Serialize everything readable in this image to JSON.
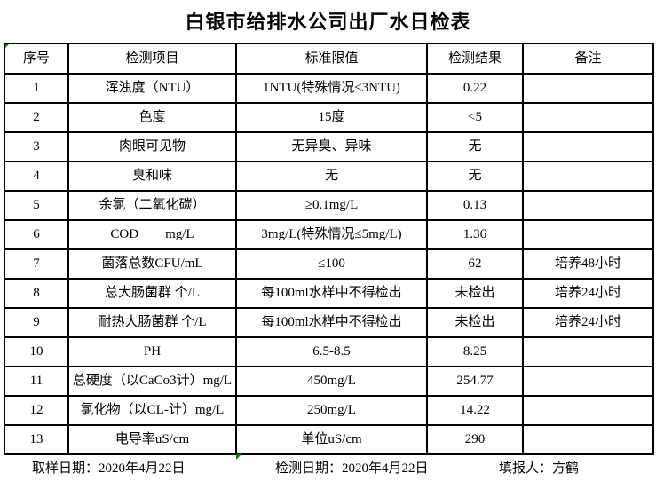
{
  "title": "白银市给排水公司出厂水日检表",
  "colors": {
    "border": "#000000",
    "background": "#ffffff",
    "text": "#000000",
    "marker_green": "#0a7d0a"
  },
  "table": {
    "headers": {
      "no": "序号",
      "item": "检测项目",
      "limit": "标准限值",
      "result": "检测结果",
      "note": "备注"
    },
    "rows": [
      {
        "no": "1",
        "item": "浑浊度（NTU）",
        "limit": "1NTU(特殊情况≤3NTU)",
        "result": "0.22",
        "note": ""
      },
      {
        "no": "2",
        "item": "色度",
        "limit": "15度",
        "result": "<5",
        "note": ""
      },
      {
        "no": "3",
        "item": "肉眼可见物",
        "limit": "无异臭、异味",
        "result": "无",
        "note": ""
      },
      {
        "no": "4",
        "item": "臭和味",
        "limit": "无",
        "result": "无",
        "note": ""
      },
      {
        "no": "5",
        "item": "余氯（二氧化碳）",
        "limit": "≥0.1mg/L",
        "result": "0.13",
        "note": ""
      },
      {
        "no": "6",
        "item": "COD        mg/L",
        "limit": "3mg/L(特殊情况≤5mg/L)",
        "result": "1.36",
        "note": ""
      },
      {
        "no": "7",
        "item": "菌落总数CFU/mL",
        "limit": "≤100",
        "result": "62",
        "note": "培养48小时"
      },
      {
        "no": "8",
        "item": "总大肠菌群 个/L",
        "limit": "每100ml水样中不得检出",
        "result": "未检出",
        "note": "培养24小时"
      },
      {
        "no": "9",
        "item": "耐热大肠菌群 个/L",
        "limit": "每100ml水样中不得检出",
        "result": "未检出",
        "note": "培养24小时"
      },
      {
        "no": "10",
        "item": "PH",
        "limit": "6.5-8.5",
        "result": "8.25",
        "note": ""
      },
      {
        "no": "11",
        "item": "总硬度（以CaCo3计）mg/L",
        "limit": "450mg/L",
        "result": "254.77",
        "note": ""
      },
      {
        "no": "12",
        "item": "氯化物（以CL-计）mg/L",
        "limit": "250mg/L",
        "result": "14.22",
        "note": ""
      },
      {
        "no": "13",
        "item": "电导率uS/cm",
        "limit": "单位uS/cm",
        "result": "290",
        "note": ""
      }
    ]
  },
  "footer": {
    "sample_date": "取样日期：2020年4月22日",
    "test_date": "检测日期：2020年4月22日",
    "reporter": "填报人：方鹤"
  }
}
